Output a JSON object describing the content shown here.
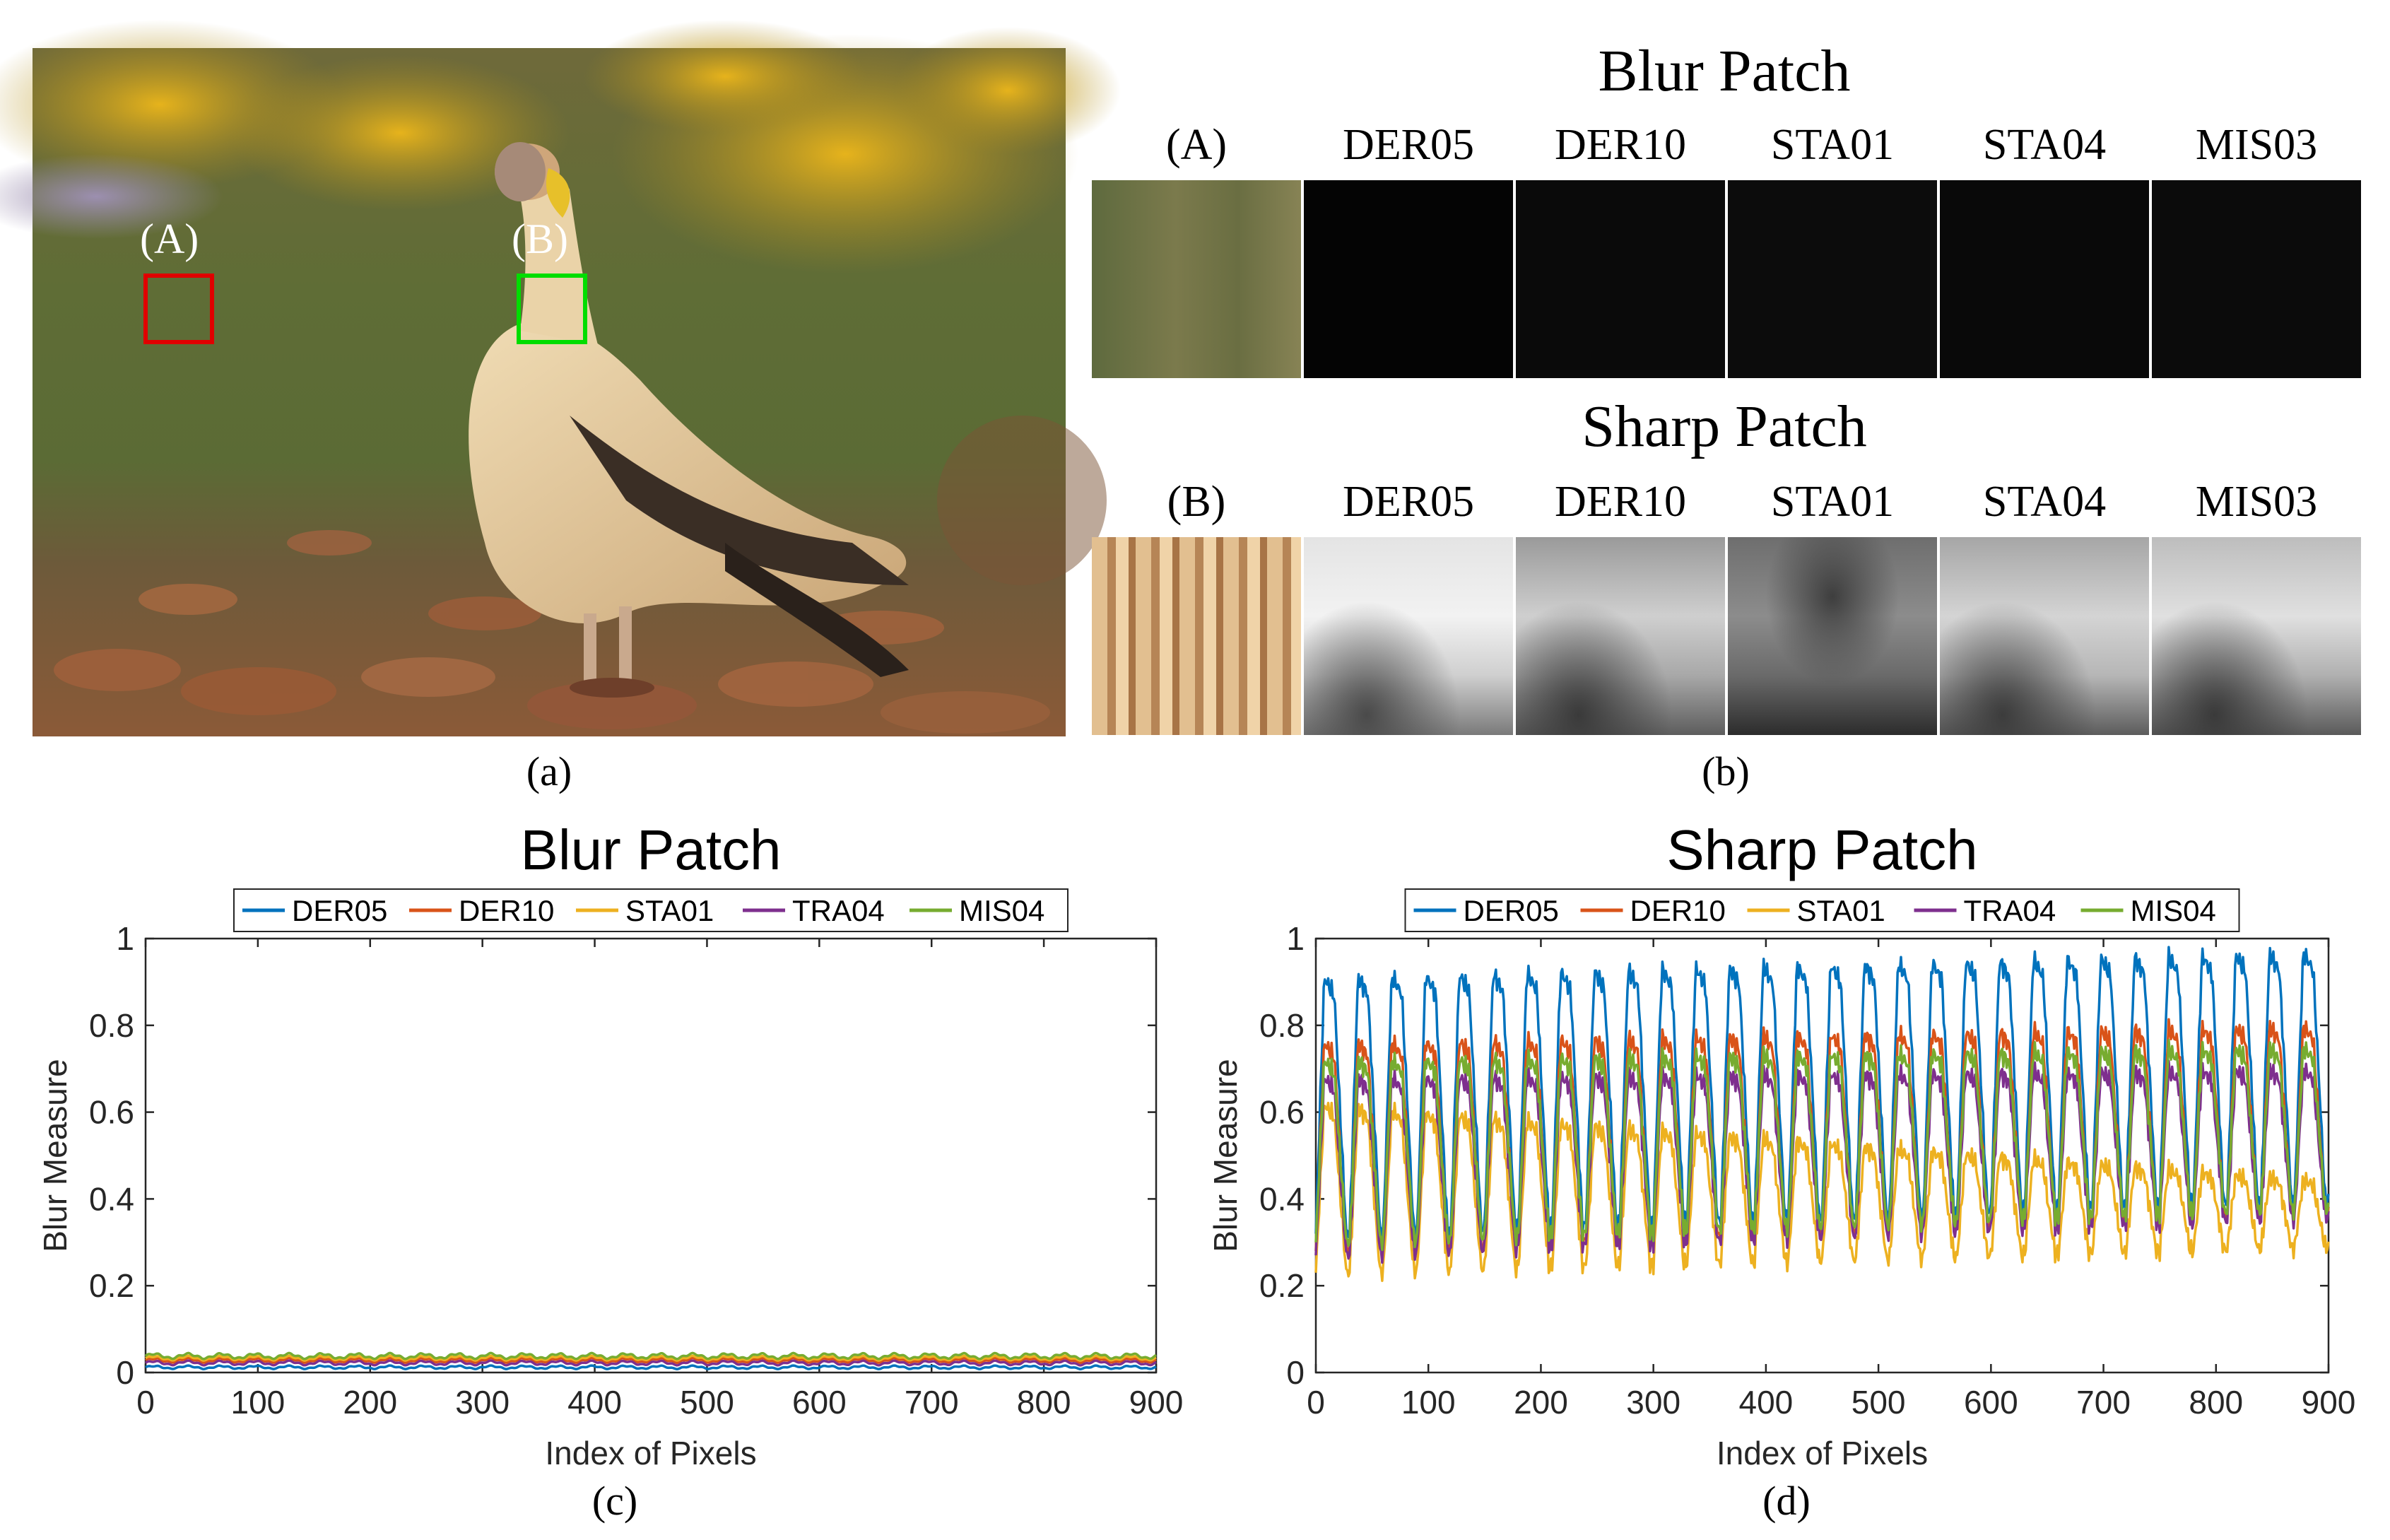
{
  "panel_a": {
    "caption": "(a)",
    "box_a_label": "(A)",
    "box_b_label": "(B)",
    "colors": {
      "box_a": "#e00000",
      "box_b": "#00dd00"
    }
  },
  "panel_b": {
    "caption": "(b)",
    "blur_title": "Blur Patch",
    "sharp_title": "Sharp Patch",
    "blur_columns": [
      "(A)",
      "DER05",
      "DER10",
      "STA01",
      "STA04",
      "MIS03"
    ],
    "sharp_columns": [
      "(B)",
      "DER05",
      "DER10",
      "STA01",
      "STA04",
      "MIS03"
    ]
  },
  "panel_c": {
    "caption": "(c)"
  },
  "panel_d": {
    "caption": "(d)"
  },
  "chart_data": [
    {
      "type": "line",
      "title": "Blur Patch",
      "xlabel": "Index of Pixels",
      "ylabel": "Blur Measure",
      "xlim": [
        0,
        900
      ],
      "ylim": [
        0,
        1
      ],
      "xticks": [
        "0",
        "100",
        "200",
        "300",
        "400",
        "500",
        "600",
        "700",
        "800",
        "900"
      ],
      "yticks": [
        "0",
        "0.2",
        "0.4",
        "0.6",
        "0.8",
        "1"
      ],
      "legend": "top",
      "series": [
        {
          "name": "DER05",
          "color": "#0072BD",
          "base": 0.012,
          "amp": 0.003,
          "period": 30
        },
        {
          "name": "DER10",
          "color": "#D95319",
          "base": 0.028,
          "amp": 0.004,
          "period": 30
        },
        {
          "name": "STA01",
          "color": "#EDB120",
          "base": 0.033,
          "amp": 0.004,
          "period": 30
        },
        {
          "name": "TRA04",
          "color": "#7E2F8E",
          "base": 0.022,
          "amp": 0.004,
          "period": 30
        },
        {
          "name": "MIS04",
          "color": "#77AC30",
          "base": 0.038,
          "amp": 0.005,
          "period": 30
        }
      ]
    },
    {
      "type": "line",
      "title": "Sharp Patch",
      "xlabel": "Index of Pixels",
      "ylabel": "Blur Measure",
      "xlim": [
        0,
        900
      ],
      "ylim": [
        0,
        1
      ],
      "xticks": [
        "0",
        "100",
        "200",
        "300",
        "400",
        "500",
        "600",
        "700",
        "800",
        "900"
      ],
      "yticks": [
        "0",
        "0.2",
        "0.4",
        "0.6",
        "0.8",
        "1"
      ],
      "legend": "top",
      "series": [
        {
          "name": "DER05",
          "color": "#0072BD",
          "high_start": 0.91,
          "high_end": 0.97,
          "low_start": 0.32,
          "low_end": 0.4,
          "period": 30
        },
        {
          "name": "DER10",
          "color": "#D95319",
          "high_start": 0.76,
          "high_end": 0.8,
          "low_start": 0.28,
          "low_end": 0.37,
          "period": 30
        },
        {
          "name": "STA01",
          "color": "#EDB120",
          "high_start": 0.62,
          "high_end": 0.44,
          "low_start": 0.23,
          "low_end": 0.29,
          "period": 30
        },
        {
          "name": "TRA04",
          "color": "#7E2F8E",
          "high_start": 0.68,
          "high_end": 0.7,
          "low_start": 0.27,
          "low_end": 0.36,
          "period": 30
        },
        {
          "name": "MIS04",
          "color": "#77AC30",
          "high_start": 0.72,
          "high_end": 0.75,
          "low_start": 0.3,
          "low_end": 0.38,
          "period": 30
        }
      ]
    }
  ]
}
